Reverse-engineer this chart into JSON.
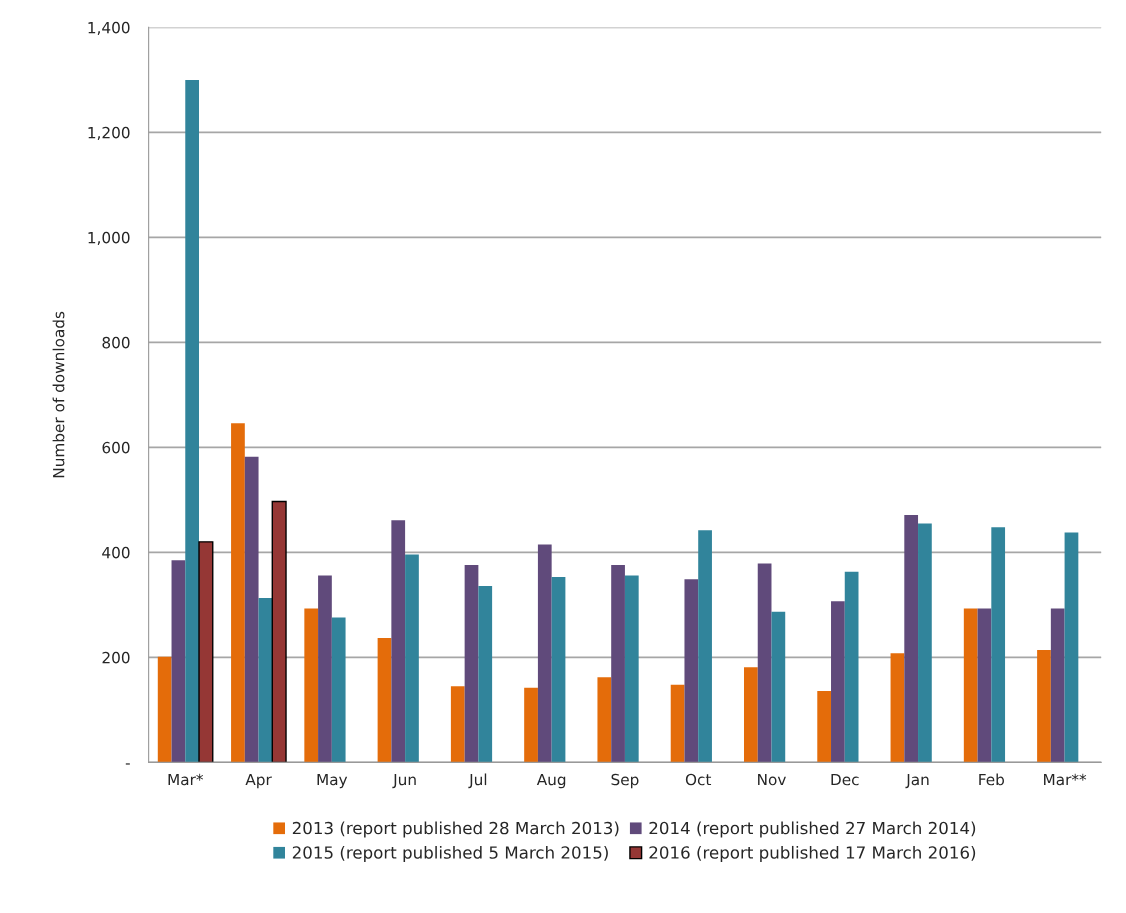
{
  "chart_data": {
    "type": "bar",
    "ylabel": "Number of downloads",
    "categories": [
      "Mar*",
      "Apr",
      "May",
      "Jun",
      "Jul",
      "Aug",
      "Sep",
      "Oct",
      "Nov",
      "Dec",
      "Jan",
      "Feb",
      "Mar**"
    ],
    "series": [
      {
        "name": "2013 (report published 28 March 2013)",
        "color": "#e46c0a",
        "values": [
          201,
          646,
          293,
          237,
          145,
          142,
          162,
          148,
          181,
          136,
          208,
          293,
          214
        ]
      },
      {
        "name": "2014 (report published 27 March 2014)",
        "color": "#604a7b",
        "values": [
          385,
          582,
          356,
          461,
          376,
          415,
          376,
          349,
          379,
          307,
          471,
          293,
          293
        ]
      },
      {
        "name": "2015 (report published 5 March 2015)",
        "color": "#31849b",
        "values": [
          1300,
          313,
          276,
          396,
          336,
          353,
          356,
          442,
          287,
          363,
          455,
          448,
          438
        ]
      },
      {
        "name": "2016 (report published 17 March 2016)",
        "color": "#953735",
        "values": [
          420,
          497,
          null,
          null,
          null,
          null,
          null,
          null,
          null,
          null,
          null,
          null,
          null
        ]
      }
    ],
    "ylim": [
      0,
      1400
    ],
    "yticks": [
      {
        "value": 0,
        "label": "-"
      },
      {
        "value": 200,
        "label": "200"
      },
      {
        "value": 400,
        "label": "400"
      },
      {
        "value": 600,
        "label": "600"
      },
      {
        "value": 800,
        "label": "800"
      },
      {
        "value": 1000,
        "label": "1,000"
      },
      {
        "value": 1200,
        "label": "1,200"
      },
      {
        "value": 1400,
        "label": "1,400"
      }
    ],
    "grid": "y",
    "legend": "bottom"
  }
}
